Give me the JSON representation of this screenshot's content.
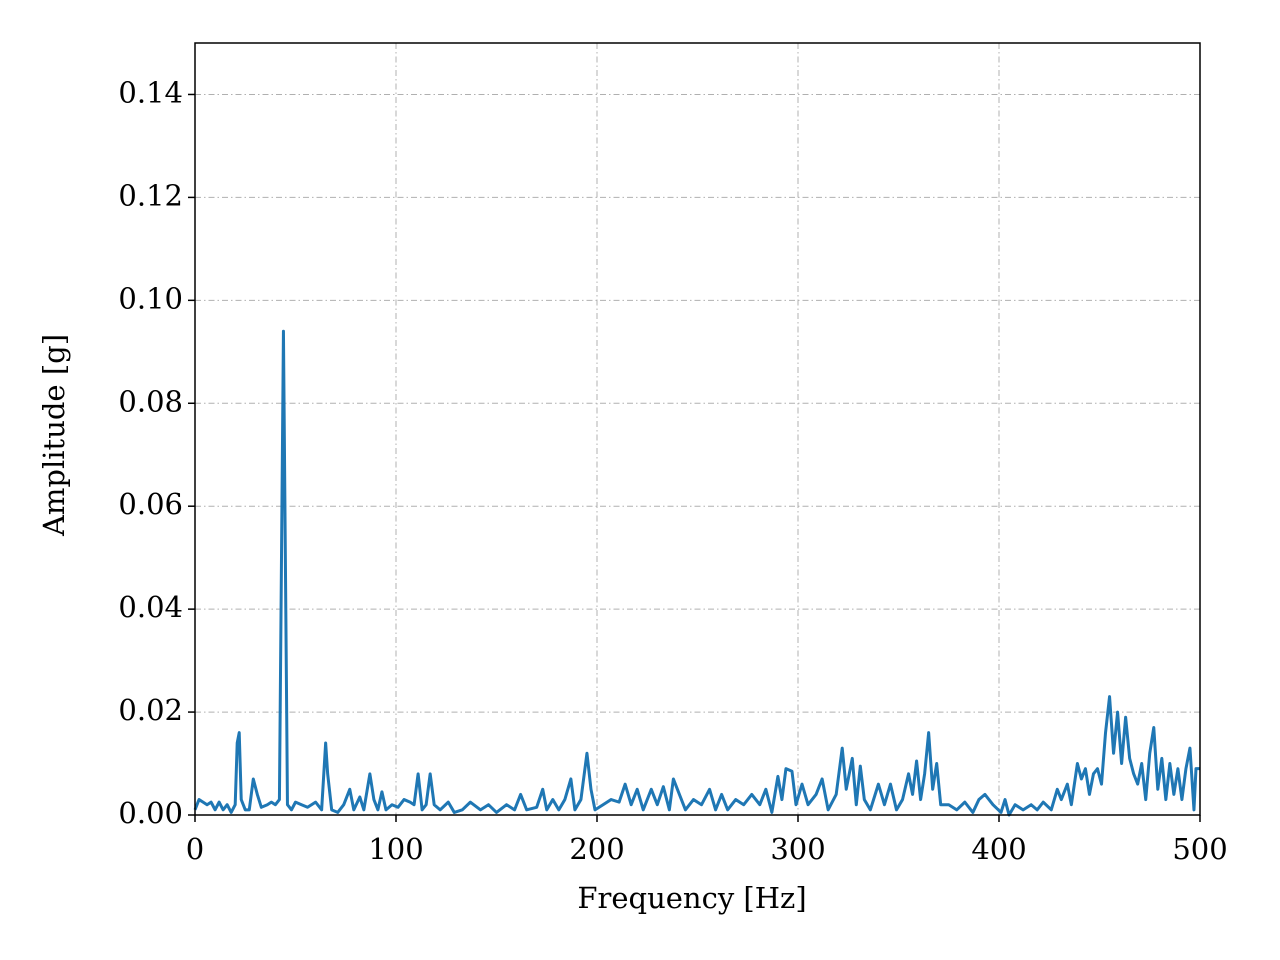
{
  "chart_data": {
    "type": "line",
    "x_label": "Frequency [Hz]",
    "y_label": "Amplitude [g]",
    "xlim": [
      0,
      500
    ],
    "ylim": [
      0,
      0.15
    ],
    "xticks": [
      0,
      100,
      200,
      300,
      400,
      500
    ],
    "yticks": [
      {
        "value": 0,
        "label": "0.00"
      },
      {
        "value": 0.02,
        "label": "0.02"
      },
      {
        "value": 0.04,
        "label": "0.04"
      },
      {
        "value": 0.06,
        "label": "0.06"
      },
      {
        "value": 0.08,
        "label": "0.08"
      },
      {
        "value": 0.1,
        "label": "0.10"
      },
      {
        "value": 0.12,
        "label": "0.12"
      },
      {
        "value": 0.14,
        "label": "0.14"
      }
    ],
    "grid": true,
    "x": [
      0,
      2,
      4,
      6,
      8,
      10,
      12,
      14,
      16,
      18,
      20,
      21,
      22,
      23,
      25,
      27,
      29,
      31,
      33,
      36,
      38,
      40,
      42,
      44,
      46,
      48,
      50,
      53,
      56,
      60,
      63,
      65,
      66,
      68,
      71,
      74,
      77,
      79,
      82,
      84,
      87,
      89,
      91,
      93,
      95,
      98,
      101,
      104,
      107,
      109,
      111,
      113,
      115,
      117,
      119,
      122,
      126,
      129,
      133,
      137,
      142,
      146,
      150,
      155,
      159,
      162,
      165,
      170,
      173,
      175,
      178,
      181,
      184,
      187,
      189,
      192,
      195,
      197,
      199,
      203,
      207,
      211,
      214,
      217,
      220,
      223,
      227,
      230,
      233,
      236,
      238,
      241,
      244,
      248,
      252,
      256,
      259,
      262,
      265,
      269,
      273,
      277,
      281,
      284,
      287,
      290,
      292,
      294,
      297,
      299,
      302,
      305,
      309,
      312,
      315,
      319,
      322,
      324,
      327,
      329,
      331,
      333,
      336,
      340,
      343,
      346,
      349,
      352,
      355,
      357,
      359,
      361,
      363,
      365,
      367,
      369,
      371,
      375,
      379,
      383,
      387,
      390,
      393,
      397,
      401,
      403,
      405,
      408,
      412,
      416,
      419,
      422,
      426,
      429,
      431,
      434,
      436,
      439,
      441,
      443,
      445,
      447,
      449,
      451,
      453,
      455,
      457,
      459,
      461,
      463,
      465,
      467,
      469,
      471,
      473,
      475,
      477,
      479,
      481,
      483,
      485,
      487,
      489,
      491,
      493,
      495,
      497,
      498,
      500
    ],
    "series": [
      {
        "name": "Amplitude",
        "color": "#1f77b4",
        "values": [
          0.001,
          0.003,
          0.0025,
          0.002,
          0.0025,
          0.001,
          0.0025,
          0.001,
          0.002,
          0.0005,
          0.002,
          0.014,
          0.016,
          0.003,
          0.001,
          0.001,
          0.007,
          0.004,
          0.0015,
          0.002,
          0.0025,
          0.002,
          0.003,
          0.094,
          0.002,
          0.001,
          0.0025,
          0.002,
          0.0015,
          0.0025,
          0.001,
          0.014,
          0.008,
          0.001,
          0.0005,
          0.002,
          0.005,
          0.001,
          0.0035,
          0.001,
          0.008,
          0.003,
          0.001,
          0.0045,
          0.001,
          0.002,
          0.0015,
          0.003,
          0.0025,
          0.002,
          0.008,
          0.001,
          0.002,
          0.008,
          0.002,
          0.001,
          0.0025,
          0.0005,
          0.001,
          0.0025,
          0.001,
          0.002,
          0.0005,
          0.002,
          0.001,
          0.004,
          0.001,
          0.0015,
          0.005,
          0.001,
          0.003,
          0.001,
          0.003,
          0.007,
          0.001,
          0.003,
          0.012,
          0.005,
          0.001,
          0.002,
          0.003,
          0.0025,
          0.006,
          0.002,
          0.005,
          0.001,
          0.005,
          0.002,
          0.0055,
          0.001,
          0.007,
          0.004,
          0.001,
          0.003,
          0.002,
          0.005,
          0.001,
          0.004,
          0.001,
          0.003,
          0.002,
          0.004,
          0.002,
          0.005,
          0.0005,
          0.0075,
          0.003,
          0.009,
          0.0085,
          0.002,
          0.006,
          0.002,
          0.004,
          0.007,
          0.001,
          0.004,
          0.013,
          0.005,
          0.011,
          0.002,
          0.0095,
          0.003,
          0.001,
          0.006,
          0.002,
          0.006,
          0.001,
          0.003,
          0.008,
          0.004,
          0.0105,
          0.003,
          0.008,
          0.016,
          0.005,
          0.01,
          0.002,
          0.002,
          0.001,
          0.0025,
          0.0005,
          0.003,
          0.004,
          0.002,
          0.0005,
          0.003,
          0,
          0.002,
          0.001,
          0.002,
          0.001,
          0.0025,
          0.001,
          0.005,
          0.003,
          0.006,
          0.002,
          0.01,
          0.007,
          0.009,
          0.004,
          0.008,
          0.009,
          0.006,
          0.016,
          0.023,
          0.012,
          0.02,
          0.01,
          0.019,
          0.011,
          0.008,
          0.006,
          0.01,
          0.003,
          0.012,
          0.017,
          0.005,
          0.011,
          0.003,
          0.01,
          0.004,
          0.009,
          0.003,
          0.009,
          0.013,
          0.001,
          0.009,
          0.009
        ]
      }
    ]
  }
}
